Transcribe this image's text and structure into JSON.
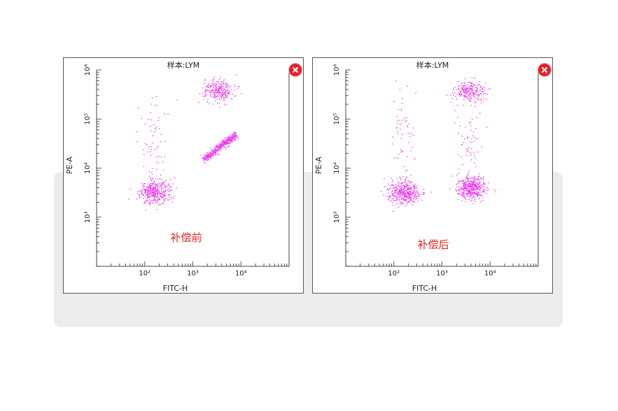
{
  "colors": {
    "points": "#ee33ee",
    "annotation": "#e0231f",
    "close_button": "#e8202a",
    "frame": "#444444"
  },
  "panels": [
    {
      "title": "样本:LYM",
      "close_icon": "close-icon"
    },
    {
      "title": "样本:LYM",
      "close_icon": "close-icon"
    }
  ],
  "chart_data": [
    {
      "type": "scatter",
      "title": "样本:LYM",
      "xlabel": "FITC-H",
      "ylabel": "PE-A",
      "x_scale": "log",
      "y_scale": "log",
      "xlim": [
        10,
        100000
      ],
      "ylim": [
        100,
        1000000
      ],
      "x_ticks": [
        "10²",
        "10³",
        "10⁴"
      ],
      "y_ticks": [
        "10³",
        "10⁴",
        "10⁵",
        "10⁶"
      ],
      "annotation": "补偿前",
      "grid": false,
      "clusters": [
        {
          "shape": "ellipse",
          "x_center": 160,
          "y_center": 3300,
          "points": 380
        },
        {
          "shape": "ellipse",
          "x_center": 3300,
          "y_center": 380000,
          "points": 260
        },
        {
          "shape": "diagonal",
          "x_from": 1600,
          "y_from": 15000,
          "x_to": 8000,
          "y_to": 50000,
          "points": 420
        },
        {
          "shape": "scatter",
          "x_center": 150,
          "y_center": 40000,
          "points": 60
        }
      ]
    },
    {
      "type": "scatter",
      "title": "样本:LYM",
      "xlabel": "FITC-H",
      "ylabel": "PE-A",
      "x_scale": "log",
      "y_scale": "log",
      "xlim": [
        10,
        100000
      ],
      "ylim": [
        100,
        1000000
      ],
      "x_ticks": [
        "10²",
        "10³",
        "10⁴"
      ],
      "y_ticks": [
        "10³",
        "10⁴",
        "10⁵",
        "10⁶"
      ],
      "annotation": "补偿后",
      "grid": false,
      "clusters": [
        {
          "shape": "ellipse",
          "x_center": 160,
          "y_center": 3300,
          "points": 400
        },
        {
          "shape": "ellipse",
          "x_center": 3600,
          "y_center": 380000,
          "points": 240
        },
        {
          "shape": "ellipse",
          "x_center": 3900,
          "y_center": 4000,
          "points": 420
        },
        {
          "shape": "scatter",
          "x_center": 150,
          "y_center": 40000,
          "points": 60
        },
        {
          "shape": "scatter",
          "x_center": 3600,
          "y_center": 40000,
          "points": 60
        }
      ]
    }
  ]
}
